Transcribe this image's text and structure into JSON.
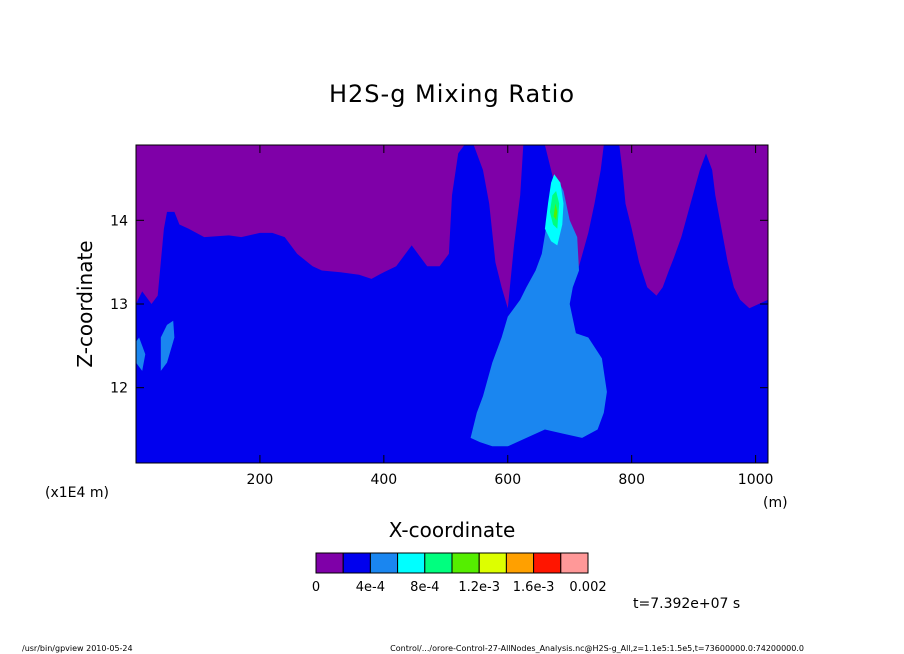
{
  "chart_data": {
    "type": "heatmap",
    "title": "H2S-g Mixing Ratio",
    "xlabel": "X-coordinate",
    "ylabel": "Z-coordinate",
    "x_unit": "(m)",
    "y_unit": "(x1E4 m)",
    "xlim": [
      0,
      1020
    ],
    "ylim": [
      11.1,
      14.9
    ],
    "x_ticks": [
      200,
      400,
      600,
      800,
      1000
    ],
    "x_tick_labels": [
      "200",
      "400",
      "600",
      "800",
      "1000"
    ],
    "y_ticks": [
      12,
      13,
      14
    ],
    "y_tick_labels": [
      "12",
      "13",
      "14"
    ],
    "colorbar": {
      "colors": [
        "#7f00a8",
        "#0000ee",
        "#1a86f0",
        "#00ffff",
        "#00ff7f",
        "#55ee00",
        "#ddff00",
        "#ffa000",
        "#ff1500",
        "#ff9898"
      ],
      "labels": [
        "0",
        "4e-4",
        "8e-4",
        "1.2e-3",
        "1.6e-3",
        "0.002"
      ],
      "label_values": [
        0,
        0.0004,
        0.0008,
        0.0012,
        0.0016,
        0.002
      ]
    },
    "regions": [
      {
        "level": 0,
        "description": "purple upper region",
        "color": "#7f00a8",
        "polygon": [
          [
            0,
            14.9
          ],
          [
            1020,
            14.9
          ],
          [
            1020,
            11.1
          ],
          [
            0,
            11.1
          ]
        ]
      },
      {
        "level": 1,
        "color": "#0000ee",
        "polygon": [
          [
            0,
            11.1
          ],
          [
            0,
            13.0
          ],
          [
            10,
            13.15
          ],
          [
            25,
            13.0
          ],
          [
            35,
            13.1
          ],
          [
            45,
            13.9
          ],
          [
            50,
            14.1
          ],
          [
            62,
            14.1
          ],
          [
            70,
            13.95
          ],
          [
            85,
            13.9
          ],
          [
            110,
            13.8
          ],
          [
            150,
            13.82
          ],
          [
            170,
            13.8
          ],
          [
            200,
            13.85
          ],
          [
            220,
            13.85
          ],
          [
            240,
            13.8
          ],
          [
            260,
            13.6
          ],
          [
            285,
            13.45
          ],
          [
            300,
            13.4
          ],
          [
            330,
            13.38
          ],
          [
            360,
            13.35
          ],
          [
            380,
            13.3
          ],
          [
            400,
            13.38
          ],
          [
            420,
            13.45
          ],
          [
            445,
            13.7
          ],
          [
            455,
            13.6
          ],
          [
            470,
            13.45
          ],
          [
            490,
            13.45
          ],
          [
            505,
            13.6
          ],
          [
            510,
            14.3
          ],
          [
            520,
            14.8
          ],
          [
            530,
            14.9
          ],
          [
            545,
            14.9
          ],
          [
            560,
            14.6
          ],
          [
            570,
            14.2
          ],
          [
            580,
            13.5
          ],
          [
            590,
            13.2
          ],
          [
            600,
            12.95
          ],
          [
            610,
            13.7
          ],
          [
            620,
            14.3
          ],
          [
            625,
            14.9
          ],
          [
            660,
            14.9
          ],
          [
            680,
            14.3
          ],
          [
            690,
            13.6
          ],
          [
            700,
            13.4
          ],
          [
            715,
            13.45
          ],
          [
            730,
            13.85
          ],
          [
            740,
            14.2
          ],
          [
            750,
            14.6
          ],
          [
            755,
            14.9
          ],
          [
            780,
            14.9
          ],
          [
            785,
            14.6
          ],
          [
            790,
            14.2
          ],
          [
            800,
            13.9
          ],
          [
            812,
            13.5
          ],
          [
            825,
            13.2
          ],
          [
            840,
            13.1
          ],
          [
            850,
            13.2
          ],
          [
            860,
            13.4
          ],
          [
            868,
            13.55
          ],
          [
            880,
            13.8
          ],
          [
            895,
            14.2
          ],
          [
            910,
            14.6
          ],
          [
            920,
            14.8
          ],
          [
            930,
            14.6
          ],
          [
            935,
            14.3
          ],
          [
            945,
            13.9
          ],
          [
            955,
            13.5
          ],
          [
            965,
            13.2
          ],
          [
            975,
            13.05
          ],
          [
            990,
            12.95
          ],
          [
            1005,
            13.0
          ],
          [
            1020,
            13.05
          ],
          [
            1020,
            11.1
          ]
        ]
      },
      {
        "level": 2,
        "color": "#1a86f0",
        "polygon": [
          [
            0,
            12.55
          ],
          [
            5,
            12.6
          ],
          [
            10,
            12.5
          ],
          [
            15,
            12.4
          ],
          [
            10,
            12.2
          ],
          [
            0,
            12.3
          ]
        ]
      },
      {
        "level": 2,
        "color": "#1a86f0",
        "polygon": [
          [
            40,
            12.6
          ],
          [
            50,
            12.75
          ],
          [
            60,
            12.8
          ],
          [
            62,
            12.6
          ],
          [
            50,
            12.3
          ],
          [
            40,
            12.2
          ]
        ]
      },
      {
        "level": 2,
        "color": "#1a86f0",
        "polygon": [
          [
            540,
            11.4
          ],
          [
            550,
            11.7
          ],
          [
            560,
            11.9
          ],
          [
            575,
            12.3
          ],
          [
            590,
            12.6
          ],
          [
            600,
            12.85
          ],
          [
            610,
            12.95
          ],
          [
            620,
            13.05
          ],
          [
            630,
            13.2
          ],
          [
            645,
            13.4
          ],
          [
            655,
            13.6
          ],
          [
            665,
            14.05
          ],
          [
            672,
            14.3
          ],
          [
            680,
            14.5
          ],
          [
            690,
            14.35
          ],
          [
            700,
            14.0
          ],
          [
            712,
            13.8
          ],
          [
            715,
            13.4
          ],
          [
            705,
            13.2
          ],
          [
            700,
            13.0
          ],
          [
            710,
            12.65
          ],
          [
            730,
            12.6
          ],
          [
            752,
            12.35
          ],
          [
            760,
            11.95
          ],
          [
            755,
            11.7
          ],
          [
            745,
            11.5
          ],
          [
            720,
            11.4
          ],
          [
            690,
            11.45
          ],
          [
            660,
            11.5
          ],
          [
            630,
            11.4
          ],
          [
            600,
            11.3
          ],
          [
            575,
            11.3
          ],
          [
            555,
            11.35
          ]
        ]
      },
      {
        "level": 3,
        "color": "#00ffff",
        "polygon": [
          [
            660,
            13.9
          ],
          [
            665,
            14.2
          ],
          [
            670,
            14.45
          ],
          [
            675,
            14.55
          ],
          [
            685,
            14.45
          ],
          [
            690,
            14.2
          ],
          [
            688,
            13.95
          ],
          [
            680,
            13.7
          ],
          [
            670,
            13.75
          ]
        ]
      },
      {
        "level": 4,
        "color": "#00ff7f",
        "polygon": [
          [
            668,
            14.1
          ],
          [
            672,
            14.3
          ],
          [
            678,
            14.35
          ],
          [
            683,
            14.2
          ],
          [
            680,
            13.9
          ],
          [
            673,
            13.95
          ]
        ]
      },
      {
        "level": 5,
        "color": "#55ee00",
        "polygon": [
          [
            674,
            14.05
          ],
          [
            677,
            14.2
          ],
          [
            680,
            14.1
          ],
          [
            678,
            14.0
          ]
        ]
      }
    ]
  },
  "time_label": "t=7.392e+07 s",
  "footer_left": "/usr/bin/gpview  2010-05-24",
  "footer_right": "Control/.../orore-Control-27-AllNodes_Analysis.nc@H2S-g_All,z=1.1e5:1.5e5,t=73600000.0:74200000.0"
}
